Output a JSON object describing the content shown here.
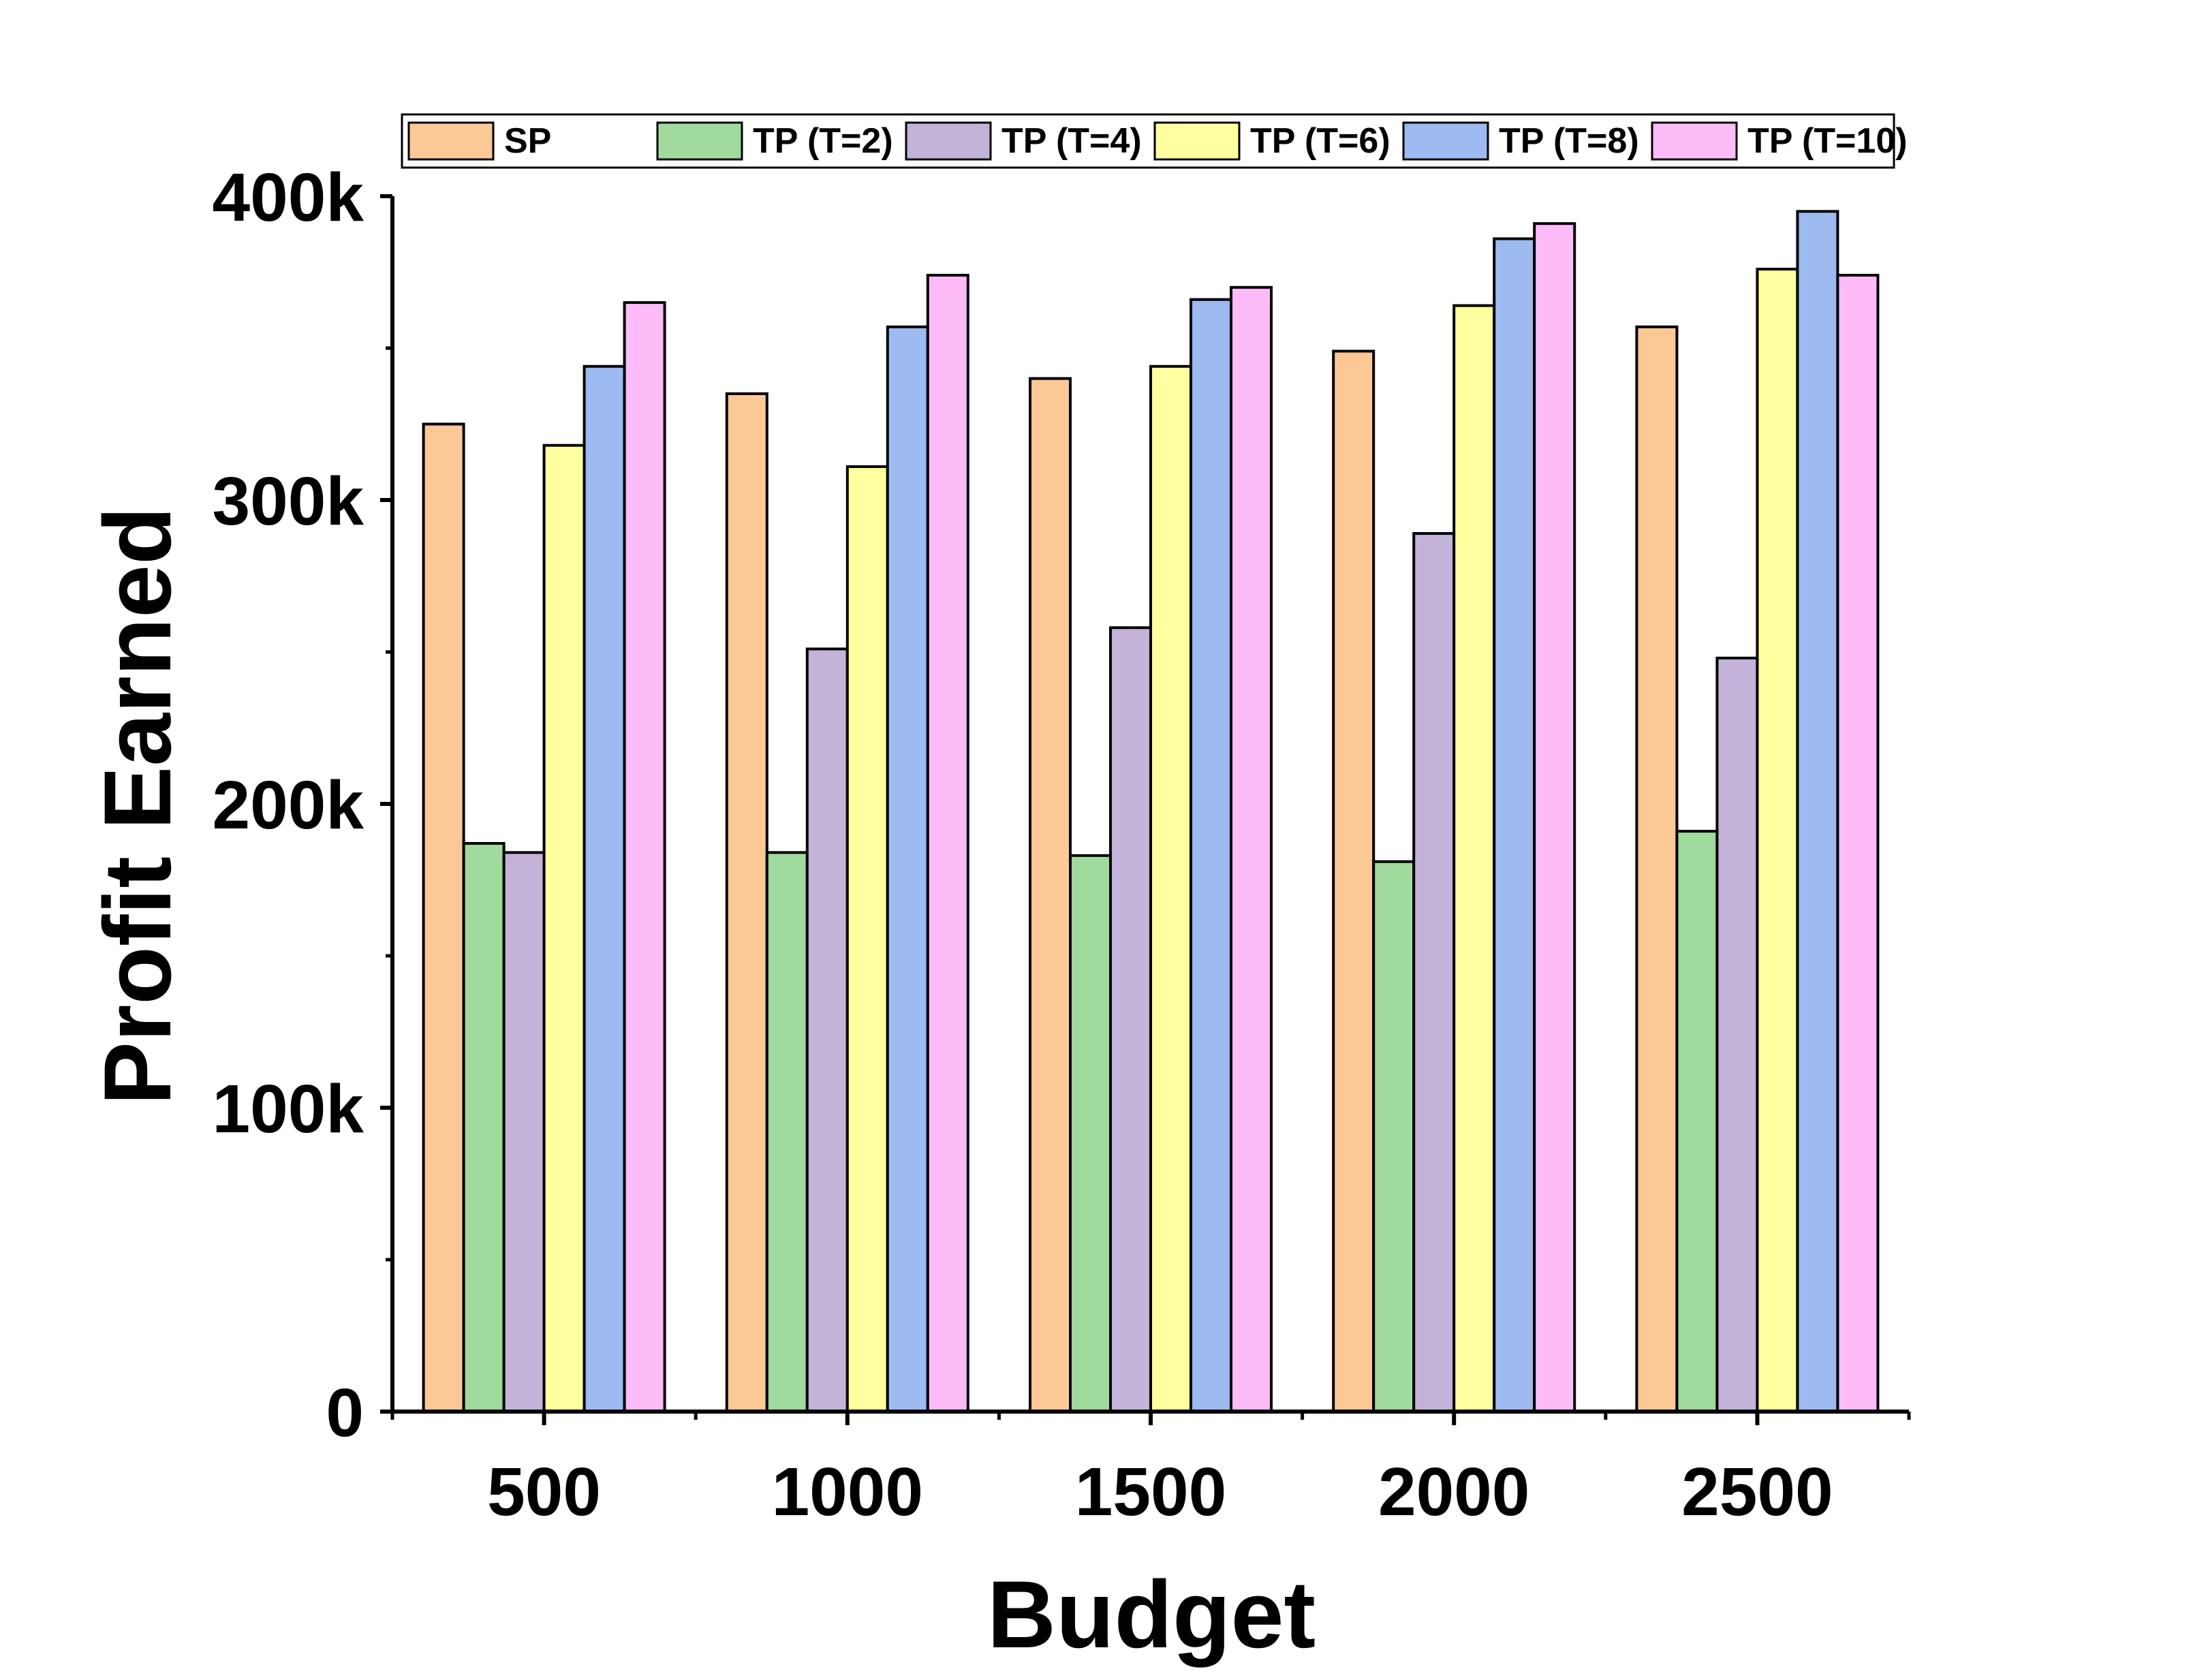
{
  "chart_data": {
    "type": "bar",
    "title": "",
    "xlabel": "Budget",
    "ylabel": "Profit Earned",
    "categories": [
      "500",
      "1000",
      "1500",
      "2000",
      "2500"
    ],
    "ylim": [
      0,
      400000
    ],
    "yticks": [
      0,
      100000,
      200000,
      300000,
      400000
    ],
    "ytick_labels": [
      "0",
      "100k",
      "200k",
      "300k",
      "400k"
    ],
    "legend_position": "top",
    "grid": false,
    "series": [
      {
        "name": "SP",
        "color": "#FCC895",
        "values": [
          325000,
          335000,
          340000,
          349000,
          357000
        ]
      },
      {
        "name": "TP (T=2)",
        "color": "#A0DA9C",
        "values": [
          187000,
          184000,
          183000,
          181000,
          191000
        ]
      },
      {
        "name": "TP (T=4)",
        "color": "#C3B3D8",
        "values": [
          184000,
          251000,
          258000,
          289000,
          248000
        ]
      },
      {
        "name": "TP (T=6)",
        "color": "#FFFFA0",
        "values": [
          318000,
          311000,
          344000,
          364000,
          376000
        ]
      },
      {
        "name": "TP (T=8)",
        "color": "#9DBAF1",
        "values": [
          344000,
          357000,
          366000,
          386000,
          395000
        ]
      },
      {
        "name": "TP (T=10)",
        "color": "#FDBBF7",
        "values": [
          365000,
          374000,
          370000,
          391000,
          374000
        ]
      }
    ]
  }
}
